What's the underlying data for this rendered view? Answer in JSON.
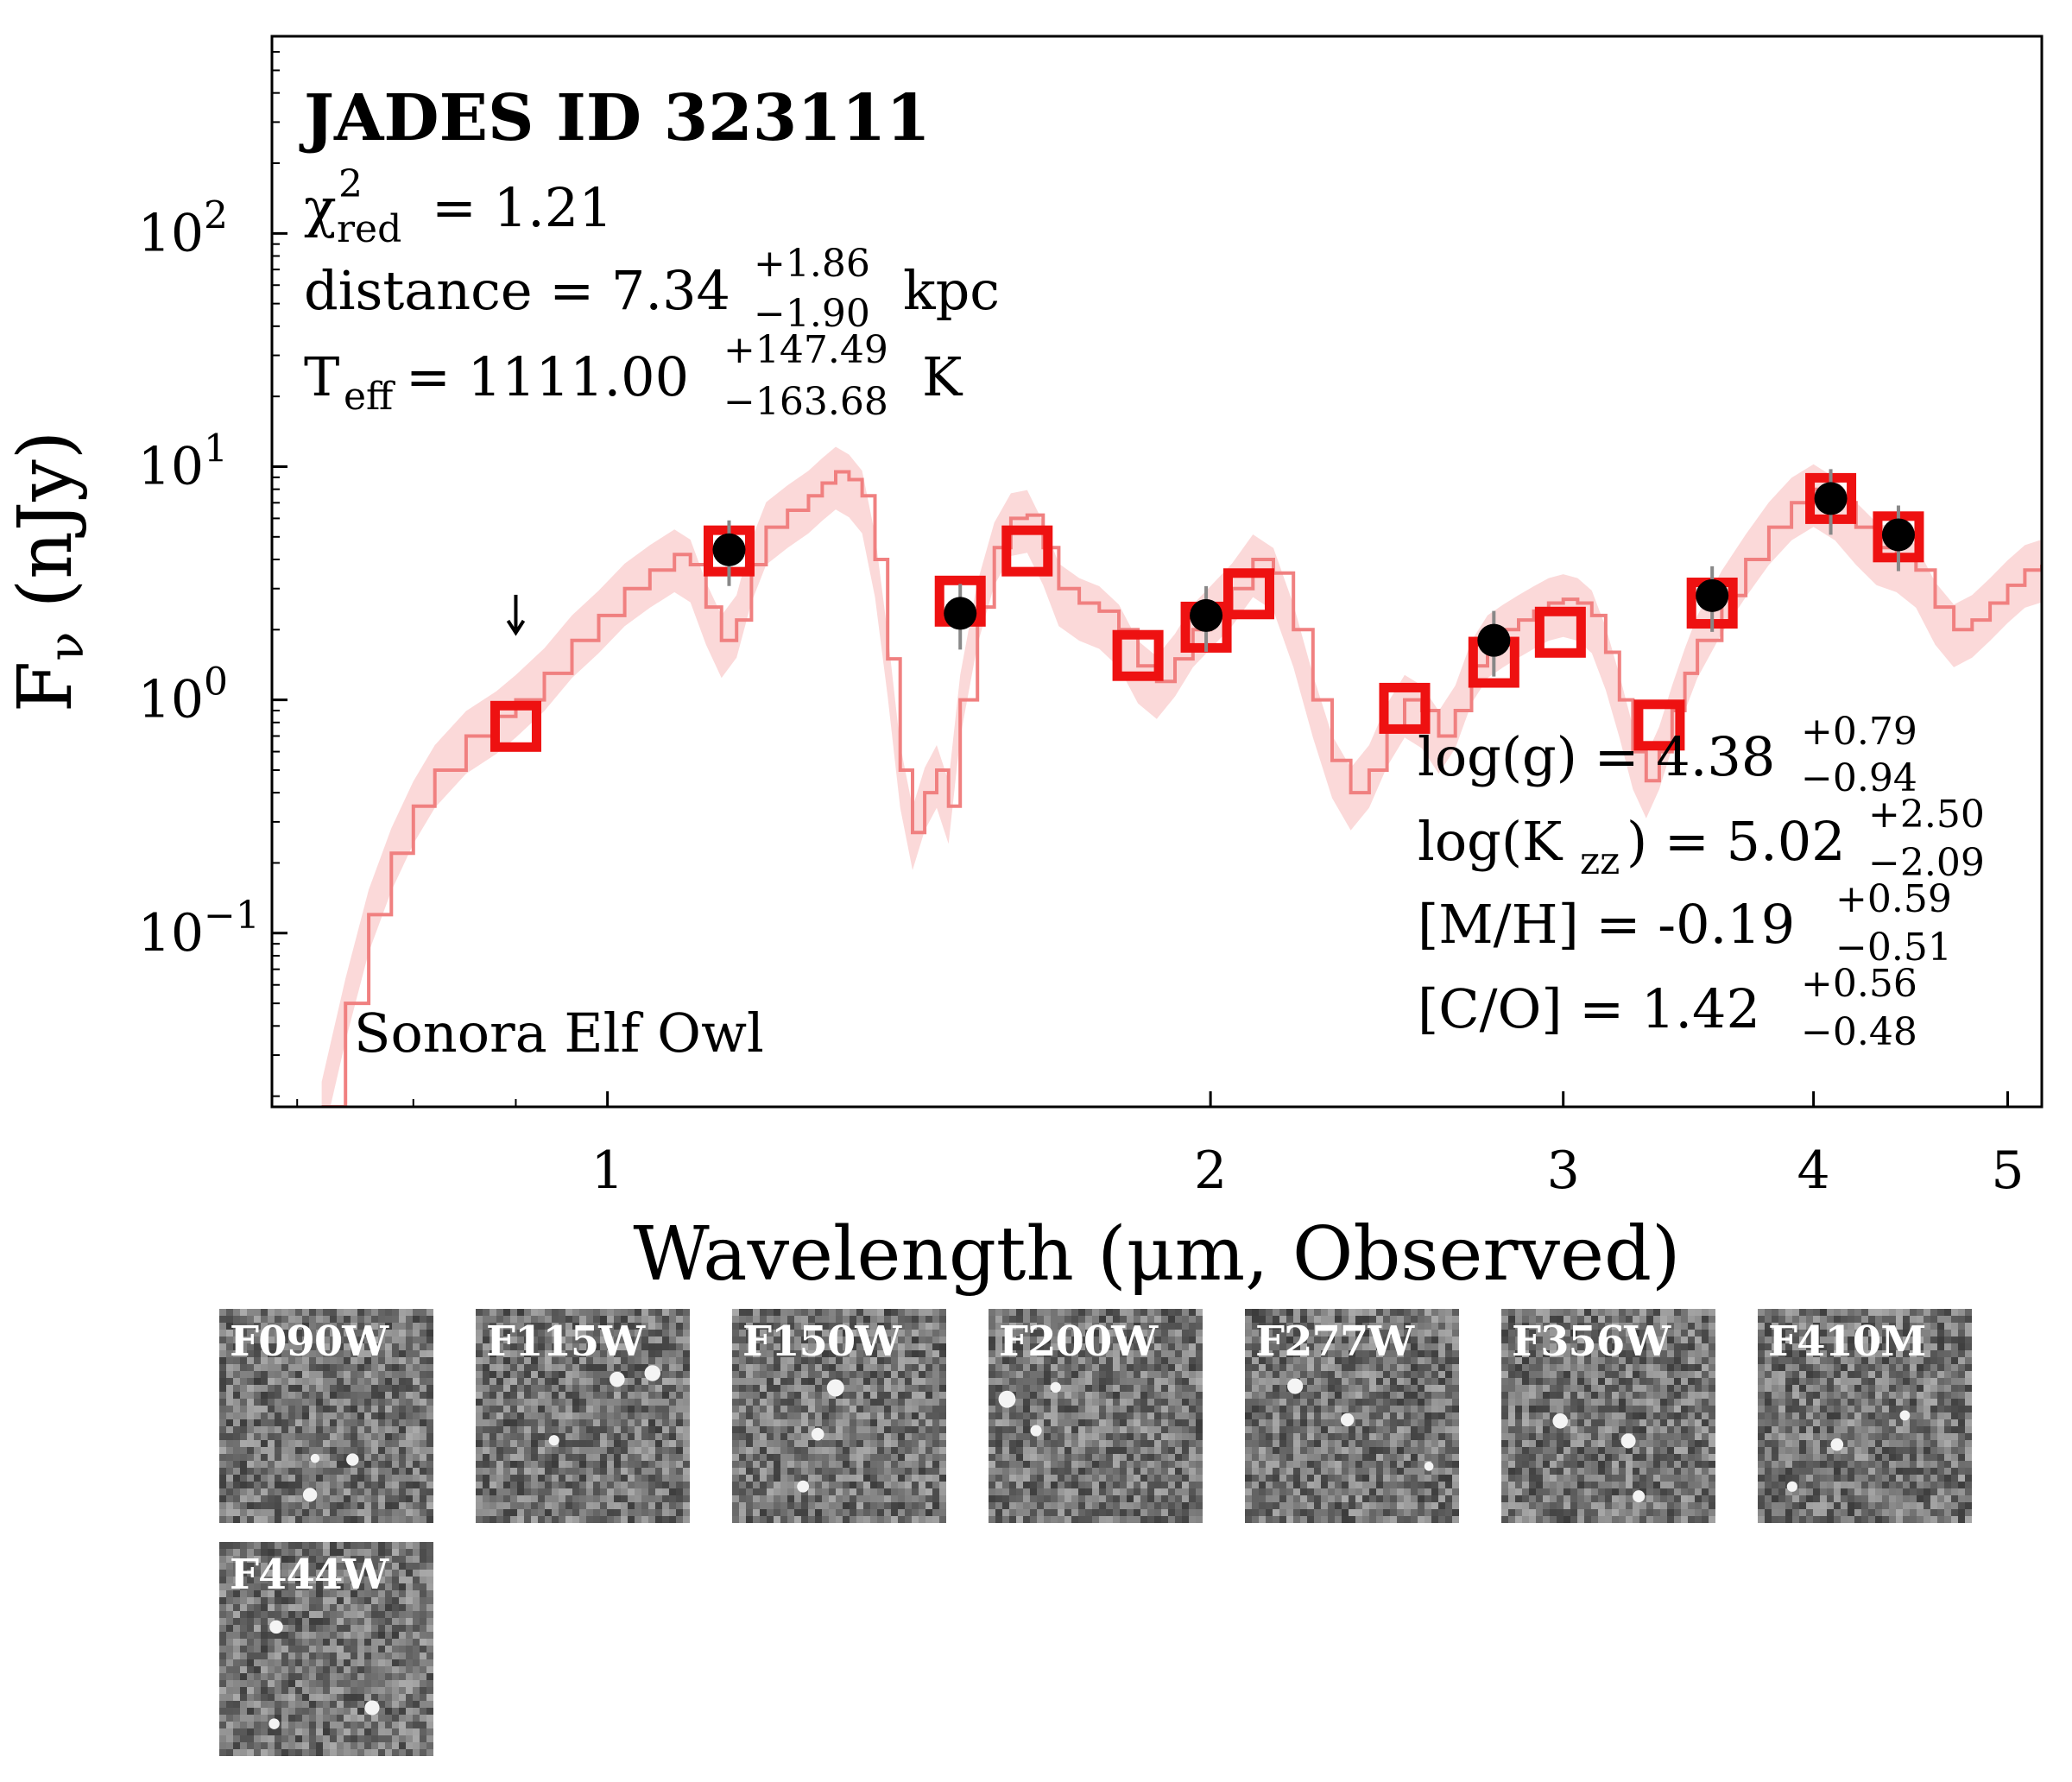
{
  "chart_data": {
    "type": "scatter",
    "title": "JADES ID 323111",
    "xlabel": "Wavelength (μm, Observed)",
    "ylabel": "F_ν (nJy)",
    "x_scale": "log",
    "y_scale": "log",
    "xlim": [
      0.68,
      5.2
    ],
    "ylim": [
      0.018,
      700
    ],
    "x_ticks": [
      1,
      2,
      3,
      4,
      5
    ],
    "x_tick_labels": [
      "1",
      "2",
      "3",
      "4",
      "5"
    ],
    "y_ticks": [
      0.1,
      1,
      10,
      100
    ],
    "y_tick_labels": [
      "10",
      "10",
      "10",
      "10"
    ],
    "y_tick_exponents": [
      "−1",
      "0",
      "1",
      "2"
    ],
    "model_name": "Sonora Elf Owl",
    "fit_stats": {
      "chi2_lhs": "χ",
      "chi2_sup": "2",
      "chi2_sub": "red",
      "chi2_val": "= 1.21",
      "distance_lhs": "distance = 7.34",
      "distance_up": "+1.86",
      "distance_lo": "−1.90",
      "distance_unit": "kpc",
      "teff_T": "T",
      "teff_sub": "eff",
      "teff_lhs": "= 1111.00",
      "teff_up": "+147.49",
      "teff_lo": "−163.68",
      "teff_unit": "K",
      "logg_lhs": "log(g) = 4.38",
      "logg_up": "+0.79",
      "logg_lo": "−0.94",
      "logk_pre": "log(K",
      "logk_sub": "zz",
      "logk_post": ") = 5.02",
      "logk_up": "+2.50",
      "logk_lo": "−2.09",
      "mh_lhs": "[M/H] = -0.19",
      "mh_up": "+0.59",
      "mh_lo": "−0.51",
      "co_lhs": "[C/O] = 1.42",
      "co_up": "+0.56",
      "co_lo": "−0.48"
    },
    "model_photometry": {
      "name": "model",
      "color": "#ee1111",
      "x": [
        0.9,
        1.15,
        1.5,
        1.62,
        1.84,
        1.99,
        2.09,
        2.5,
        2.77,
        2.99,
        3.35,
        3.56,
        4.08,
        4.41
      ],
      "y": [
        0.77,
        4.35,
        2.65,
        4.35,
        1.55,
        2.05,
        2.85,
        0.92,
        1.45,
        1.95,
        0.78,
        2.6,
        7.3,
        5.0
      ]
    },
    "observed_photometry": {
      "name": "observed",
      "color": "#000000",
      "x": [
        1.15,
        1.5,
        1.99,
        2.77,
        3.56,
        4.08,
        4.41
      ],
      "y": [
        4.4,
        2.35,
        2.3,
        1.8,
        2.8,
        7.3,
        5.1
      ]
    },
    "upper_limits": [
      {
        "x": 0.9,
        "y": 2.3
      }
    ],
    "spectrum": {
      "color": "#f08080",
      "x": [
        0.72,
        0.74,
        0.76,
        0.78,
        0.8,
        0.82,
        0.85,
        0.88,
        0.9,
        0.93,
        0.96,
        0.99,
        1.02,
        1.05,
        1.08,
        1.1,
        1.12,
        1.14,
        1.16,
        1.18,
        1.2,
        1.23,
        1.26,
        1.28,
        1.3,
        1.32,
        1.34,
        1.36,
        1.38,
        1.4,
        1.42,
        1.44,
        1.46,
        1.48,
        1.5,
        1.53,
        1.56,
        1.59,
        1.62,
        1.65,
        1.68,
        1.72,
        1.76,
        1.8,
        1.84,
        1.88,
        1.92,
        1.96,
        2.0,
        2.05,
        2.1,
        2.15,
        2.2,
        2.25,
        2.3,
        2.35,
        2.4,
        2.45,
        2.5,
        2.55,
        2.6,
        2.65,
        2.7,
        2.75,
        2.8,
        2.85,
        2.9,
        2.95,
        3.0,
        3.05,
        3.1,
        3.15,
        3.2,
        3.25,
        3.3,
        3.35,
        3.4,
        3.45,
        3.5,
        3.6,
        3.7,
        3.8,
        3.9,
        4.0,
        4.1,
        4.2,
        4.3,
        4.4,
        4.5,
        4.6,
        4.7,
        4.8,
        4.9,
        5.0,
        5.1,
        5.2
      ],
      "y": [
        0.018,
        0.05,
        0.12,
        0.22,
        0.35,
        0.5,
        0.7,
        0.85,
        1.0,
        1.3,
        1.8,
        2.3,
        3.0,
        3.6,
        4.2,
        3.8,
        2.5,
        1.8,
        2.2,
        3.8,
        5.5,
        6.5,
        7.5,
        8.5,
        9.5,
        8.8,
        7.5,
        4.0,
        1.5,
        0.5,
        0.27,
        0.4,
        0.5,
        0.35,
        1.0,
        2.5,
        4.5,
        6.0,
        6.2,
        4.5,
        3.0,
        2.6,
        2.4,
        2.0,
        1.4,
        1.2,
        1.5,
        2.0,
        2.4,
        3.0,
        4.0,
        3.5,
        2.0,
        1.0,
        0.55,
        0.4,
        0.5,
        0.75,
        1.0,
        0.9,
        0.7,
        0.9,
        1.4,
        1.8,
        2.0,
        2.2,
        2.4,
        2.6,
        2.7,
        2.6,
        2.3,
        1.6,
        1.0,
        0.6,
        0.45,
        0.6,
        0.9,
        1.3,
        1.8,
        2.8,
        4.0,
        5.5,
        7.0,
        8.0,
        7.0,
        5.5,
        4.5,
        4.2,
        3.6,
        2.5,
        2.0,
        2.2,
        2.6,
        3.1,
        3.6,
        3.8
      ]
    },
    "cutouts": [
      "F090W",
      "F115W",
      "F150W",
      "F200W",
      "F277W",
      "F356W",
      "F410M",
      "F444W"
    ]
  }
}
